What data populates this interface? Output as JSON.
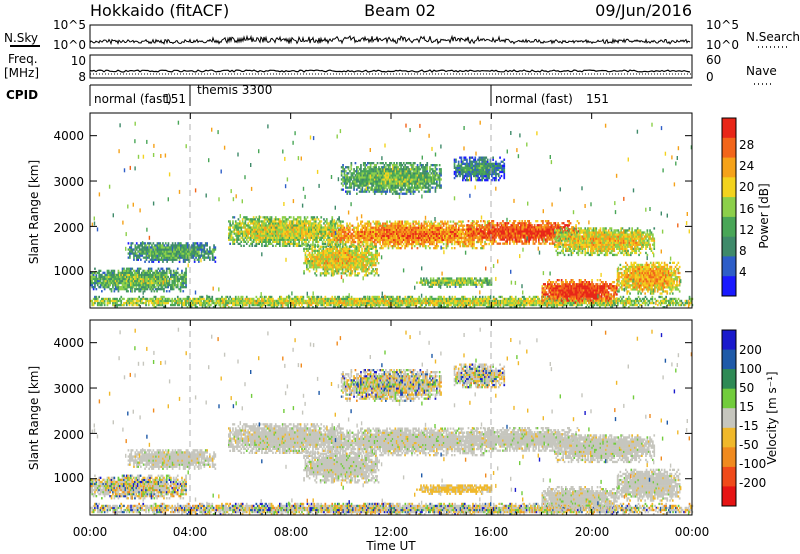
{
  "header": {
    "station": "Hokkaido (fitACF)",
    "beam": "Beam 02",
    "date": "09/Jun/2016"
  },
  "top_panels": {
    "nsky_label": "N.Sky",
    "nsky_ticks": [
      "10^5",
      "10^0"
    ],
    "nsearch_label": "N.Search",
    "nsearch_ticks": [
      "10^5",
      "10^0"
    ],
    "freq_label_line1": "Freq.",
    "freq_label_line2": "[MHz]",
    "freq_ticks": [
      "10",
      "8"
    ],
    "nave_label": "Nave",
    "nave_ticks": [
      "60",
      "0"
    ],
    "cpid_label": "CPID",
    "cpid_segments": [
      {
        "label": "normal (fast)",
        "start_hour": 0,
        "end_hour": 4
      },
      {
        "label": "151",
        "start_hour": 0,
        "end_hour": 4
      },
      {
        "label": "themis 3300",
        "start_hour": 4,
        "end_hour": 16
      },
      {
        "label": "normal (fast)",
        "start_hour": 16,
        "end_hour": 24
      },
      {
        "label": "151",
        "start_hour": 16,
        "end_hour": 24
      }
    ]
  },
  "axes": {
    "ylabel": "Slant Range [km]",
    "xlabel": "Time UT",
    "y_ticks": [
      "1000",
      "2000",
      "3000",
      "4000"
    ],
    "x_ticks": [
      "00:00",
      "04:00",
      "08:00",
      "12:00",
      "16:00",
      "20:00",
      "00:00"
    ]
  },
  "power_scale": {
    "label": "Power [dB]",
    "ticks": [
      "4",
      "8",
      "12",
      "16",
      "20",
      "24",
      "28"
    ],
    "colors": [
      "#1a1aff",
      "#2e5ec8",
      "#3f8a6a",
      "#49a657",
      "#8ccf4a",
      "#f3d31e",
      "#f5a219",
      "#f2651a",
      "#e82618"
    ]
  },
  "velocity_scale": {
    "label": "Velocity [m s⁻¹]",
    "ticks": [
      "200",
      "100",
      "50",
      "15",
      "-15",
      "-50",
      "-100",
      "-200"
    ],
    "colors": [
      "#1a1acc",
      "#1f5aa8",
      "#2f8a55",
      "#72cc3c",
      "#c6c6be",
      "#f0b82a",
      "#f08a1e",
      "#f04a1a",
      "#e61414"
    ]
  },
  "chart_data": {
    "type": "heatmap",
    "title": "Hokkaido (fitACF)",
    "xlabel": "Time UT",
    "ylabel": "Slant Range [km]",
    "xlim": [
      0,
      24
    ],
    "ylim": [
      200,
      4500
    ],
    "x_unit": "hour UT",
    "panels": [
      "power",
      "velocity"
    ],
    "echo_regions": [
      {
        "t0": 0.0,
        "t1": 3.8,
        "r0": 550,
        "r1": 1050,
        "power_db": 14,
        "velocity": "mixed"
      },
      {
        "t0": 0.0,
        "t1": 24.0,
        "r0": 200,
        "r1": 430,
        "power_db": 18,
        "velocity": "mixed"
      },
      {
        "t0": 1.5,
        "t1": 5.0,
        "r0": 1200,
        "r1": 1650,
        "power_db": 12,
        "velocity": "low"
      },
      {
        "t0": 5.5,
        "t1": 10.0,
        "r0": 1550,
        "r1": 2200,
        "power_db": 18,
        "velocity": "low"
      },
      {
        "t0": 9.5,
        "t1": 16.0,
        "r0": 1500,
        "r1": 2100,
        "power_db": 24,
        "velocity": "low"
      },
      {
        "t0": 15.0,
        "t1": 19.5,
        "r0": 1600,
        "r1": 2100,
        "power_db": 28,
        "velocity": "low"
      },
      {
        "t0": 18.5,
        "t1": 22.5,
        "r0": 1350,
        "r1": 1950,
        "power_db": 20,
        "velocity": "low"
      },
      {
        "t0": 8.5,
        "t1": 11.5,
        "r0": 900,
        "r1": 1600,
        "power_db": 20,
        "velocity": "low"
      },
      {
        "t0": 10.0,
        "t1": 14.0,
        "r0": 2700,
        "r1": 3400,
        "power_db": 14,
        "velocity": "mixed"
      },
      {
        "t0": 14.5,
        "t1": 16.5,
        "r0": 3000,
        "r1": 3500,
        "power_db": 10,
        "velocity": "mixed"
      },
      {
        "t0": 18.0,
        "t1": 21.0,
        "r0": 300,
        "r1": 800,
        "power_db": 28,
        "velocity": "low"
      },
      {
        "t0": 21.0,
        "t1": 23.5,
        "r0": 500,
        "r1": 1200,
        "power_db": 22,
        "velocity": "low"
      },
      {
        "t0": 13.0,
        "t1": 16.0,
        "r0": 650,
        "r1": 850,
        "power_db": 16,
        "velocity": "negative"
      }
    ]
  }
}
